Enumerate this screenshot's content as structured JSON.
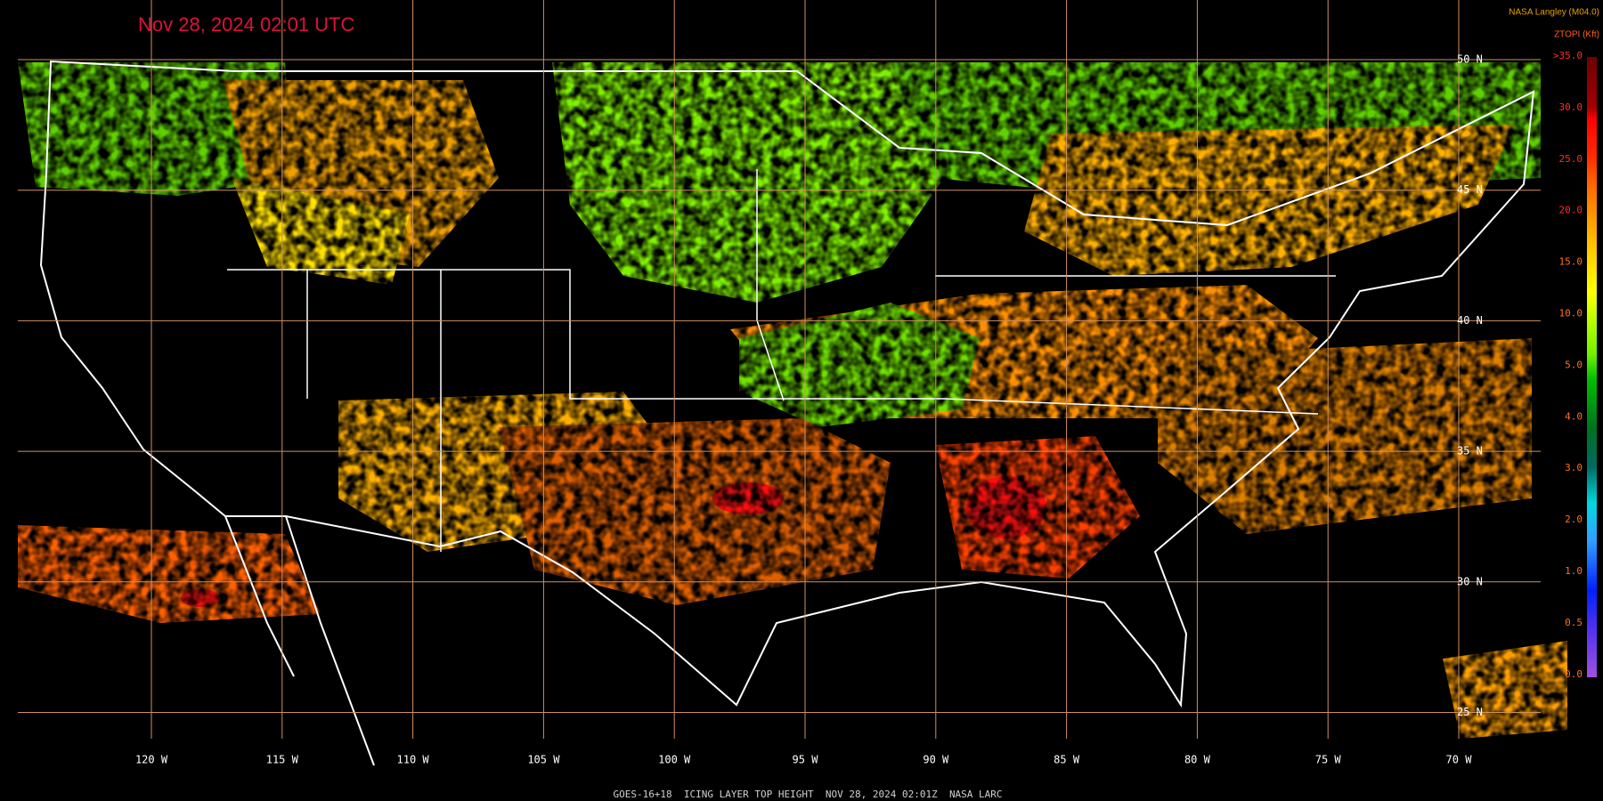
{
  "header": {
    "timestamp": "Nov 28, 2024 02:01 UTC",
    "source": "NASA Langley (M04.0)"
  },
  "legend": {
    "title": "ZTOPI (Kft)",
    "labels": [
      ">35.0",
      "30.0",
      "25.0",
      "20.0",
      "15.0",
      "10.0",
      "5.0",
      "4.0",
      "3.0",
      "2.0",
      "1.0",
      "0.5",
      "0.0"
    ]
  },
  "latitude_labels": [
    "50 N",
    "45 N",
    "40 N",
    "35 N",
    "30 N",
    "25 N"
  ],
  "longitude_labels": [
    "120 W",
    "115 W",
    "110 W",
    "105 W",
    "100 W",
    "95 W",
    "90 W",
    "85 W",
    "80 W",
    "75 W",
    "70 W"
  ],
  "footer": "GOES-16+18  ICING LAYER TOP HEIGHT  NOV 28, 2024 02:01Z  NASA LARC"
}
